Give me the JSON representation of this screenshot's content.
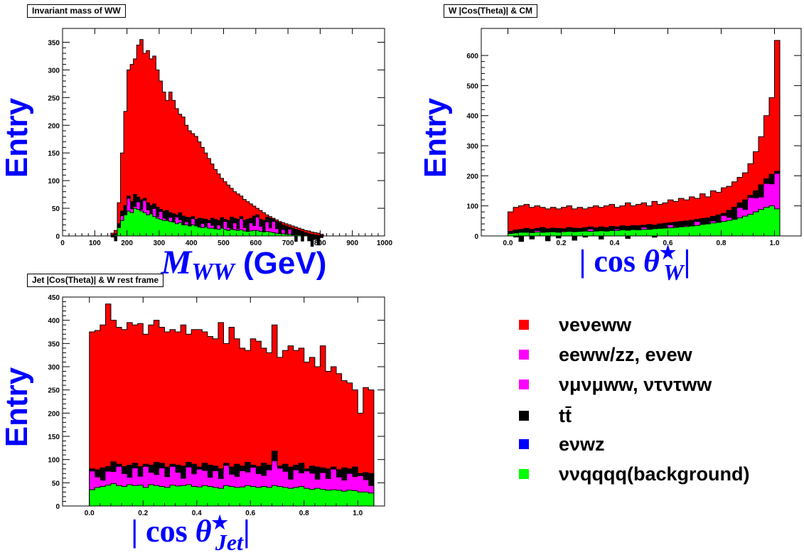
{
  "figure_titles": {
    "mww": "Invariant mass of WW",
    "cosw": "W |Cos(Theta)| & CM",
    "cosjet": "Jet |Cos(Theta)| & W rest frame"
  },
  "colors": {
    "vvww": "#ff0000",
    "eeww": "#ff00ff",
    "mutauww": "#ff00ff",
    "tt": "#000000",
    "evwz": "#0000ff",
    "bkg": "#00ff00",
    "axis_title": "#0000ff"
  },
  "legend": {
    "items": [
      {
        "key": "vvww",
        "label": "νeνeww"
      },
      {
        "key": "eeww",
        "label": "eeww/zz, eνew"
      },
      {
        "key": "mutauww",
        "label": "νμνμww, ντντww"
      },
      {
        "key": "tt",
        "label": "tt̄"
      },
      {
        "key": "evwz",
        "label": "eνwz"
      },
      {
        "key": "bkg",
        "label": "ννqqqq(background)"
      }
    ]
  },
  "chart_data": [
    {
      "id": "mww",
      "type": "area",
      "title": "Invariant mass of WW",
      "xlabel": "MWW (GeV)",
      "ylabel": "Entry",
      "xlim": [
        0,
        1000
      ],
      "ylim": [
        0,
        375
      ],
      "xticks": [
        0,
        100,
        200,
        300,
        400,
        500,
        600,
        700,
        800,
        900,
        1000
      ],
      "yticks": [
        0,
        50,
        100,
        150,
        200,
        250,
        300,
        350
      ],
      "stack_order": [
        "bkg",
        "evwz",
        "tt",
        "mutauww",
        "eeww",
        "vvww"
      ],
      "bin_width": 10,
      "x_start": 150,
      "series": [
        {
          "key": "vvww",
          "totals": [
            5,
            10,
            60,
            150,
            225,
            300,
            310,
            320,
            345,
            355,
            330,
            335,
            320,
            325,
            300,
            280,
            260,
            245,
            260,
            245,
            230,
            220,
            215,
            200,
            190,
            185,
            180,
            170,
            160,
            150,
            140,
            130,
            120,
            112,
            104,
            98,
            92,
            86,
            80,
            76,
            72,
            66,
            62,
            58,
            54,
            50,
            46,
            42,
            38,
            35,
            32,
            29,
            26,
            24,
            22,
            20,
            18,
            16,
            14,
            12,
            10,
            9,
            7,
            6,
            5,
            3
          ]
        },
        {
          "key": "stack_top_below_vvww",
          "totals": [
            2,
            4,
            22,
            45,
            55,
            72,
            62,
            75,
            70,
            65,
            68,
            60,
            55,
            58,
            52,
            48,
            45,
            46,
            42,
            40,
            38,
            42,
            36,
            34,
            33,
            35,
            30,
            32,
            31,
            30,
            28,
            32,
            30,
            28,
            33,
            30,
            28,
            34,
            32,
            30,
            35,
            28,
            30,
            32,
            36,
            38,
            30,
            28,
            34,
            32,
            30,
            26,
            24,
            20,
            18,
            16,
            14,
            12,
            10,
            8,
            6,
            4,
            3,
            2,
            1,
            1
          ]
        },
        {
          "key": "bkg",
          "totals": [
            1,
            2,
            15,
            28,
            38,
            45,
            42,
            50,
            48,
            45,
            42,
            38,
            40,
            35,
            32,
            30,
            28,
            28,
            26,
            25,
            22,
            24,
            20,
            20,
            18,
            20,
            18,
            16,
            15,
            16,
            14,
            14,
            13,
            12,
            14,
            12,
            10,
            12,
            11,
            10,
            11,
            9,
            8,
            9,
            10,
            10,
            8,
            7,
            8,
            7,
            6,
            5,
            4,
            4,
            3,
            3,
            2,
            2,
            2,
            1,
            1,
            1,
            0,
            0,
            0,
            0
          ]
        }
      ]
    },
    {
      "id": "cosw",
      "type": "area",
      "title": "W |Cos(Theta)| & CM",
      "xlabel": "|cos θ*W|",
      "ylabel": "Entry",
      "xlim": [
        -0.1,
        1.1
      ],
      "ylim": [
        0,
        690
      ],
      "xticks": [
        0.0,
        0.2,
        0.4,
        0.6,
        0.8,
        1.0
      ],
      "yticks": [
        0,
        100,
        200,
        300,
        400,
        500,
        600
      ],
      "stack_order": [
        "bkg",
        "evwz",
        "tt",
        "mutauww",
        "eeww",
        "vvww"
      ],
      "bin_width": 0.02,
      "x_start": 0.0,
      "series": [
        {
          "key": "vvww",
          "totals": [
            80,
            95,
            100,
            105,
            95,
            100,
            95,
            90,
            95,
            90,
            95,
            100,
            90,
            95,
            90,
            95,
            100,
            95,
            100,
            105,
            95,
            100,
            110,
            100,
            105,
            110,
            100,
            115,
            105,
            110,
            120,
            115,
            125,
            120,
            130,
            125,
            140,
            130,
            150,
            145,
            160,
            165,
            180,
            195,
            210,
            240,
            280,
            330,
            400,
            460,
            650
          ]
        },
        {
          "key": "stack_top_below_vvww",
          "totals": [
            15,
            20,
            22,
            25,
            22,
            25,
            28,
            24,
            26,
            25,
            24,
            28,
            26,
            25,
            28,
            30,
            27,
            30,
            28,
            32,
            30,
            34,
            32,
            35,
            34,
            36,
            38,
            36,
            40,
            42,
            44,
            46,
            48,
            50,
            52,
            55,
            58,
            60,
            65,
            70,
            75,
            85,
            95,
            110,
            120,
            135,
            150,
            170,
            190,
            205,
            215
          ]
        },
        {
          "key": "bkg",
          "totals": [
            8,
            10,
            12,
            12,
            11,
            13,
            12,
            13,
            14,
            12,
            14,
            15,
            14,
            15,
            16,
            15,
            16,
            17,
            16,
            18,
            18,
            20,
            19,
            21,
            20,
            22,
            22,
            24,
            25,
            26,
            27,
            28,
            30,
            31,
            33,
            35,
            38,
            40,
            43,
            45,
            48,
            52,
            55,
            60,
            66,
            72,
            80,
            88,
            95,
            100,
            90
          ]
        }
      ]
    },
    {
      "id": "cosjet",
      "type": "area",
      "title": "Jet |Cos(Theta)| & W rest frame",
      "xlabel": "|cos θ*Jet|",
      "ylabel": "Entry",
      "xlim": [
        -0.1,
        1.1
      ],
      "ylim": [
        0,
        450
      ],
      "xticks": [
        0.0,
        0.2,
        0.4,
        0.6,
        0.8,
        1.0
      ],
      "yticks": [
        0,
        50,
        100,
        150,
        200,
        250,
        300,
        350,
        400,
        450
      ],
      "stack_order": [
        "bkg",
        "evwz",
        "tt",
        "mutauww",
        "eeww",
        "vvww"
      ],
      "bin_width": 0.02,
      "x_start": 0.0,
      "series": [
        {
          "key": "vvww",
          "totals": [
            375,
            378,
            390,
            435,
            400,
            385,
            380,
            395,
            390,
            393,
            370,
            390,
            400,
            385,
            375,
            380,
            375,
            390,
            370,
            380,
            380,
            375,
            365,
            360,
            395,
            350,
            385,
            360,
            340,
            335,
            360,
            355,
            340,
            330,
            390,
            320,
            335,
            345,
            335,
            340,
            310,
            320,
            300,
            345,
            290,
            300,
            285,
            270,
            265,
            250,
            200,
            255,
            250
          ]
        },
        {
          "key": "stack_top_below_vvww",
          "totals": [
            80,
            78,
            82,
            85,
            95,
            90,
            85,
            88,
            92,
            85,
            90,
            88,
            94,
            92,
            84,
            90,
            88,
            86,
            94,
            90,
            84,
            92,
            88,
            86,
            80,
            92,
            84,
            90,
            86,
            94,
            88,
            85,
            92,
            88,
            118,
            86,
            90,
            84,
            88,
            92,
            80,
            86,
            84,
            82,
            80,
            84,
            78,
            82,
            80,
            84,
            70,
            72,
            70
          ]
        },
        {
          "key": "bkg",
          "totals": [
            35,
            40,
            42,
            45,
            48,
            44,
            42,
            46,
            44,
            45,
            40,
            46,
            44,
            42,
            40,
            45,
            43,
            44,
            46,
            42,
            41,
            44,
            42,
            40,
            38,
            44,
            42,
            40,
            41,
            44,
            42,
            40,
            42,
            40,
            44,
            42,
            40,
            38,
            40,
            42,
            38,
            36,
            38,
            36,
            34,
            35,
            34,
            32,
            34,
            33,
            30,
            30,
            28
          ]
        }
      ]
    }
  ]
}
